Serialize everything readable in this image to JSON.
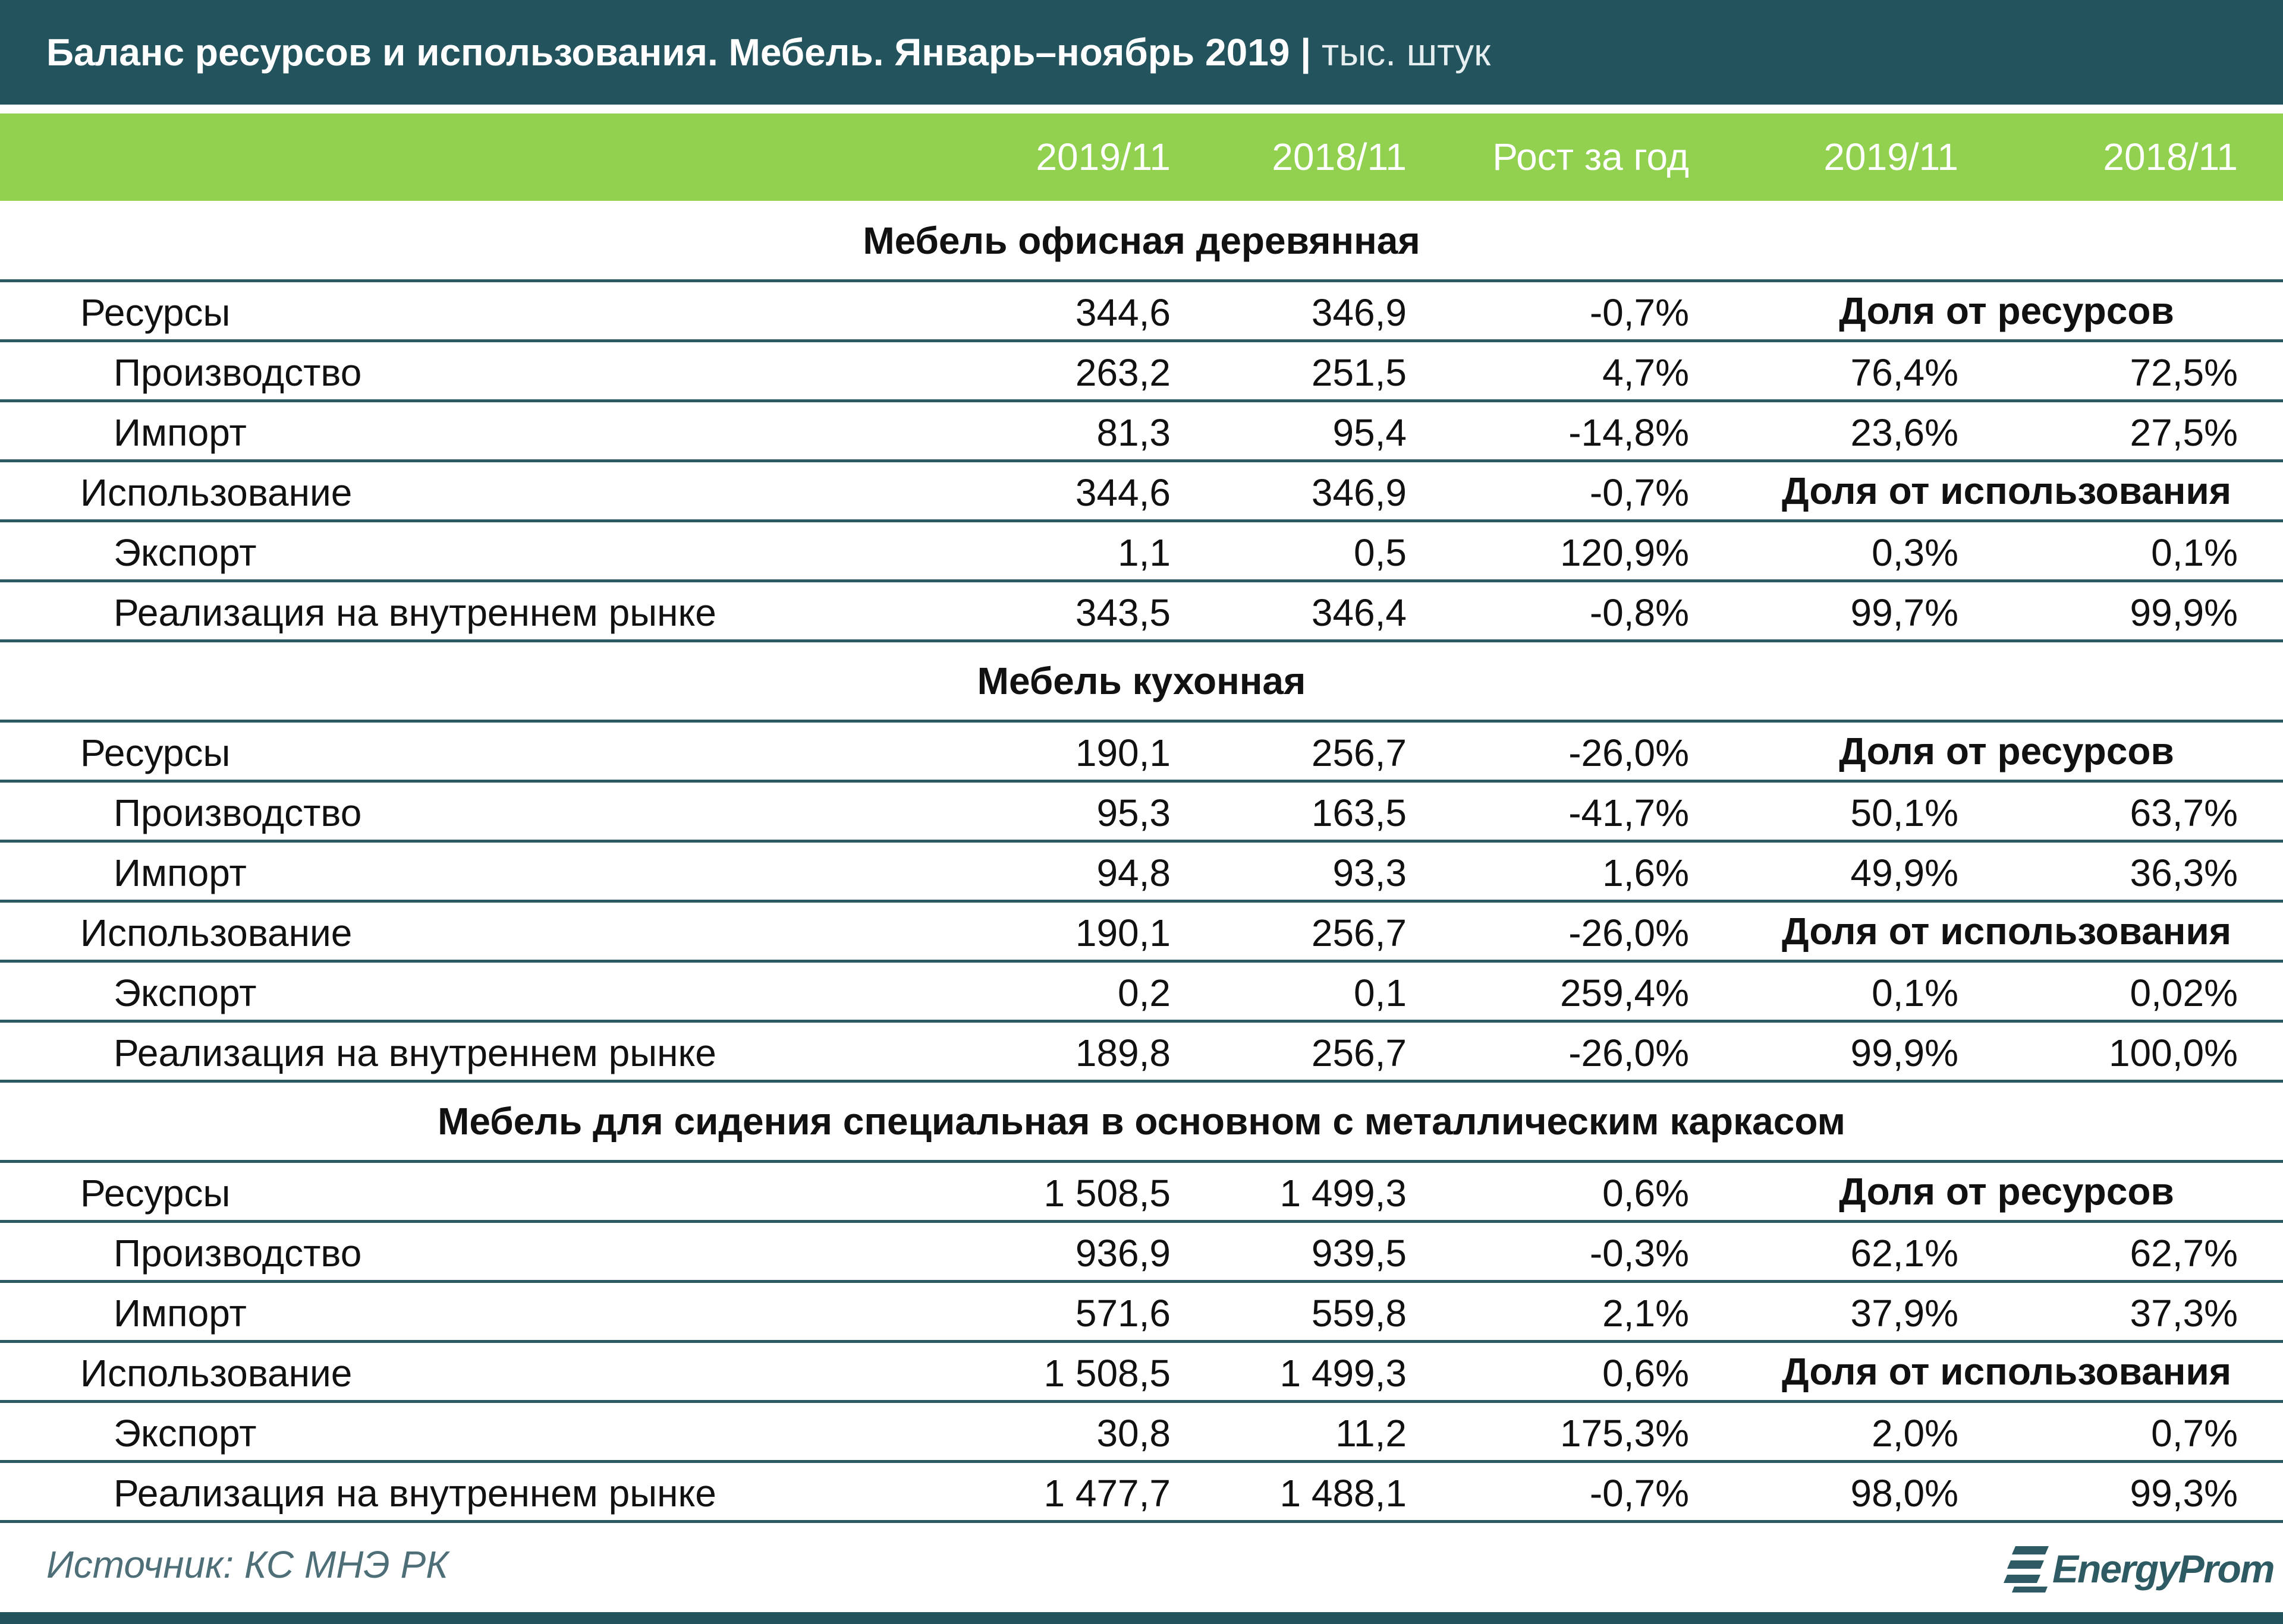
{
  "header": {
    "title": "Баланс ресурсов и использования. Мебель. Январь–ноябрь 2019",
    "unit": "тыс. штук"
  },
  "table": {
    "columns": [
      "2019/11",
      "2018/11",
      "Рост за год",
      "2019/11",
      "2018/11"
    ],
    "sections": [
      {
        "title": "Мебель офисная деревянная",
        "rows": [
          {
            "label": "Ресурсы",
            "cells": [
              "344,6",
              "346,9",
              "-0,7%"
            ],
            "note": "Доля от ресурсов"
          },
          {
            "label": "Производство",
            "cells": [
              "263,2",
              "251,5",
              "4,7%",
              "76,4%",
              "72,5%"
            ]
          },
          {
            "label": "Импорт",
            "cells": [
              "81,3",
              "95,4",
              "-14,8%",
              "23,6%",
              "27,5%"
            ]
          },
          {
            "label": "Использование",
            "cells": [
              "344,6",
              "346,9",
              "-0,7%"
            ],
            "note": "Доля от использования"
          },
          {
            "label": "Экспорт",
            "cells": [
              "1,1",
              "0,5",
              "120,9%",
              "0,3%",
              "0,1%"
            ]
          },
          {
            "label": "Реализация на внутреннем рынке",
            "cells": [
              "343,5",
              "346,4",
              "-0,8%",
              "99,7%",
              "99,9%"
            ]
          }
        ]
      },
      {
        "title": "Мебель кухонная",
        "rows": [
          {
            "label": "Ресурсы",
            "cells": [
              "190,1",
              "256,7",
              "-26,0%"
            ],
            "note": "Доля от ресурсов"
          },
          {
            "label": "Производство",
            "cells": [
              "95,3",
              "163,5",
              "-41,7%",
              "50,1%",
              "63,7%"
            ]
          },
          {
            "label": "Импорт",
            "cells": [
              "94,8",
              "93,3",
              "1,6%",
              "49,9%",
              "36,3%"
            ]
          },
          {
            "label": "Использование",
            "cells": [
              "190,1",
              "256,7",
              "-26,0%"
            ],
            "note": "Доля от использования"
          },
          {
            "label": "Экспорт",
            "cells": [
              "0,2",
              "0,1",
              "259,4%",
              "0,1%",
              "0,02%"
            ]
          },
          {
            "label": "Реализация на внутреннем рынке",
            "cells": [
              "189,8",
              "256,7",
              "-26,0%",
              "99,9%",
              "100,0%"
            ]
          }
        ]
      },
      {
        "title": "Мебель для сидения специальная в основном с металлическим каркасом",
        "rows": [
          {
            "label": "Ресурсы",
            "cells": [
              "1 508,5",
              "1 499,3",
              "0,6%"
            ],
            "note": "Доля от ресурсов"
          },
          {
            "label": "Производство",
            "cells": [
              "936,9",
              "939,5",
              "-0,3%",
              "62,1%",
              "62,7%"
            ]
          },
          {
            "label": "Импорт",
            "cells": [
              "571,6",
              "559,8",
              "2,1%",
              "37,9%",
              "37,3%"
            ]
          },
          {
            "label": "Использование",
            "cells": [
              "1 508,5",
              "1 499,3",
              "0,6%"
            ],
            "note": "Доля от использования"
          },
          {
            "label": "Экспорт",
            "cells": [
              "30,8",
              "11,2",
              "175,3%",
              "2,0%",
              "0,7%"
            ]
          },
          {
            "label": "Реализация на внутреннем рынке",
            "cells": [
              "1 477,7",
              "1 488,1",
              "-0,7%",
              "98,0%",
              "99,3%"
            ]
          }
        ]
      }
    ]
  },
  "footer": {
    "source": "Источник: КС МНЭ РК",
    "logo": "EnergyProm"
  }
}
